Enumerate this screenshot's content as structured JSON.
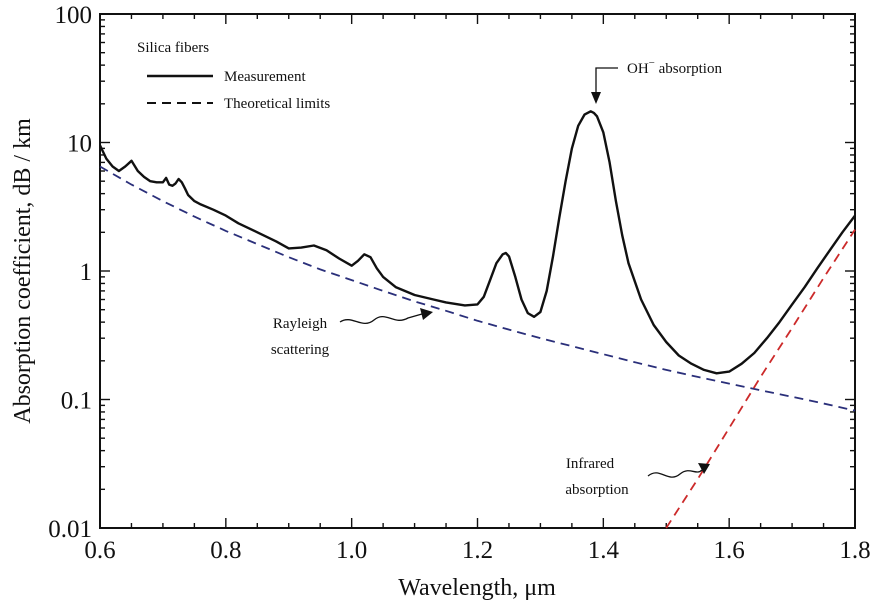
{
  "chart_data": {
    "type": "line",
    "title": "",
    "xlabel": "Wavelength, μm",
    "ylabel": "Absorption coefficient, dB / km",
    "xlim": [
      0.6,
      1.8
    ],
    "ylim": [
      0.01,
      100
    ],
    "yscale": "log",
    "grid": false,
    "x_ticks": [
      0.6,
      0.8,
      1.0,
      1.2,
      1.4,
      1.6,
      1.8
    ],
    "x_tick_labels": [
      "0.6",
      "0.8",
      "1.0",
      "1.2",
      "1.4",
      "1.6",
      "1.8"
    ],
    "y_ticks": [
      0.01,
      0.1,
      1,
      10,
      100
    ],
    "y_tick_labels": [
      "0.01",
      "0.1",
      "1",
      "10",
      "100"
    ],
    "legend": {
      "title": "Silica fibers",
      "placement": "top-left",
      "entries": [
        {
          "label": "Measurement",
          "style": "solid"
        },
        {
          "label": "Theoretical limits",
          "style": "dashed"
        }
      ]
    },
    "annotations": {
      "oh": {
        "text": "OH",
        "sup": "−",
        "tail": " absorption"
      },
      "rayleigh": [
        "Rayleigh",
        "scattering"
      ],
      "infrared": [
        "Infrared",
        "absorption"
      ]
    },
    "series": [
      {
        "name": "Measurement",
        "style": "solid",
        "color": "#111111",
        "x": [
          0.6,
          0.61,
          0.62,
          0.63,
          0.64,
          0.65,
          0.66,
          0.67,
          0.68,
          0.69,
          0.7,
          0.705,
          0.71,
          0.715,
          0.72,
          0.725,
          0.73,
          0.735,
          0.74,
          0.75,
          0.76,
          0.78,
          0.8,
          0.82,
          0.85,
          0.88,
          0.9,
          0.92,
          0.94,
          0.96,
          0.98,
          1.0,
          1.01,
          1.02,
          1.03,
          1.04,
          1.05,
          1.07,
          1.1,
          1.13,
          1.15,
          1.18,
          1.2,
          1.21,
          1.22,
          1.23,
          1.24,
          1.245,
          1.25,
          1.26,
          1.27,
          1.28,
          1.29,
          1.3,
          1.31,
          1.32,
          1.33,
          1.34,
          1.35,
          1.36,
          1.37,
          1.38,
          1.385,
          1.39,
          1.4,
          1.41,
          1.42,
          1.43,
          1.44,
          1.46,
          1.48,
          1.5,
          1.52,
          1.54,
          1.56,
          1.58,
          1.6,
          1.62,
          1.64,
          1.66,
          1.68,
          1.7,
          1.72,
          1.74,
          1.76,
          1.78,
          1.8
        ],
        "y": [
          9.5,
          7.5,
          6.5,
          6.0,
          6.5,
          7.2,
          6.0,
          5.4,
          5.0,
          4.9,
          4.9,
          5.3,
          4.7,
          4.6,
          4.8,
          5.2,
          4.9,
          4.4,
          3.9,
          3.5,
          3.3,
          3.0,
          2.7,
          2.35,
          2.0,
          1.7,
          1.5,
          1.52,
          1.58,
          1.45,
          1.25,
          1.1,
          1.2,
          1.35,
          1.28,
          1.05,
          0.9,
          0.75,
          0.65,
          0.6,
          0.57,
          0.54,
          0.55,
          0.63,
          0.85,
          1.15,
          1.35,
          1.38,
          1.3,
          0.9,
          0.6,
          0.47,
          0.44,
          0.48,
          0.7,
          1.3,
          2.6,
          5.0,
          9.0,
          13.5,
          16.5,
          17.5,
          17.0,
          16.0,
          12.0,
          7.0,
          3.5,
          1.9,
          1.15,
          0.6,
          0.38,
          0.28,
          0.22,
          0.19,
          0.17,
          0.16,
          0.165,
          0.19,
          0.23,
          0.3,
          0.4,
          0.55,
          0.75,
          1.05,
          1.45,
          2.0,
          2.7
        ]
      },
      {
        "name": "Theoretical limits",
        "style": "dashed",
        "segment": "Rayleigh scattering",
        "color": "#2a2f7a",
        "x": [
          0.6,
          0.65,
          0.7,
          0.75,
          0.8,
          0.85,
          0.9,
          0.95,
          1.0,
          1.05,
          1.1,
          1.15,
          1.2,
          1.25,
          1.3,
          1.35,
          1.4,
          1.45,
          1.5,
          1.55,
          1.6,
          1.65,
          1.7,
          1.75,
          1.8
        ],
        "y": [
          6.5,
          4.7,
          3.5,
          2.65,
          2.05,
          1.62,
          1.28,
          1.03,
          0.85,
          0.7,
          0.58,
          0.49,
          0.41,
          0.35,
          0.3,
          0.26,
          0.225,
          0.195,
          0.17,
          0.15,
          0.133,
          0.118,
          0.105,
          0.093,
          0.082
        ]
      },
      {
        "name": "Theoretical limits",
        "style": "dashed",
        "segment": "Infrared absorption",
        "color": "#cc2a2a",
        "x": [
          1.5,
          1.55,
          1.6,
          1.65,
          1.7,
          1.75,
          1.8
        ],
        "y": [
          0.01,
          0.024,
          0.06,
          0.15,
          0.36,
          0.88,
          2.1
        ]
      }
    ]
  }
}
